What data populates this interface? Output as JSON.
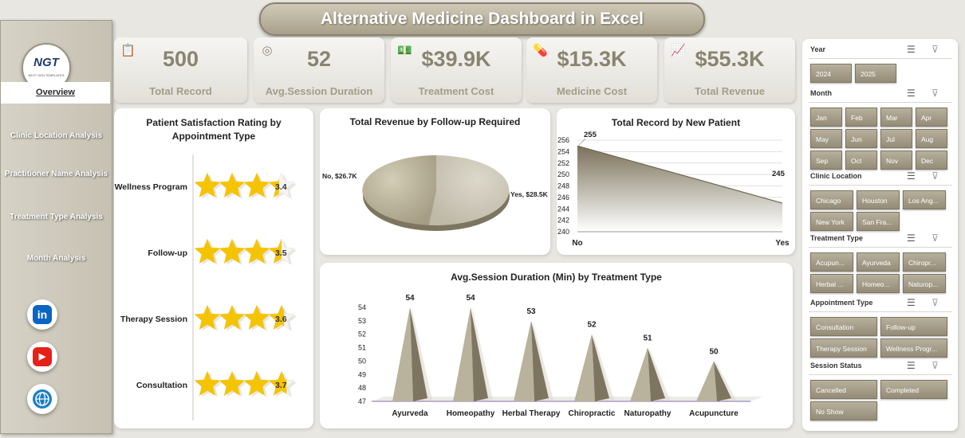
{
  "title": "Alternative Medicine Dashboard in Excel",
  "logo": {
    "text": "NGT",
    "subtext": "NEXT GEN TEMPLATES"
  },
  "nav": [
    {
      "label": "Overview",
      "active": true
    },
    {
      "label": "Clinic Location Analysis"
    },
    {
      "label": "Practitioner Name Analysis"
    },
    {
      "label": "Treatment Type Analysis"
    },
    {
      "label": "Month Analysis"
    }
  ],
  "social": [
    {
      "name": "linkedin-icon",
      "glyph": "in",
      "color": "#0a66c2"
    },
    {
      "name": "youtube-icon",
      "glyph": "▶",
      "color": "#e62117"
    },
    {
      "name": "globe-icon",
      "glyph": "🌐",
      "color": "#1b7fc4"
    }
  ],
  "kpis": [
    {
      "value": "500",
      "label": "Total Record",
      "icon": "clipboard-icon"
    },
    {
      "value": "52",
      "label": "Avg.Session Duration",
      "icon": "timer-icon"
    },
    {
      "value": "$39.9K",
      "label": "Treatment Cost",
      "icon": "money-icon"
    },
    {
      "value": "$15.3K",
      "label": "Medicine Cost",
      "icon": "medicine-icon"
    },
    {
      "value": "$55.3K",
      "label": "Total Revenue",
      "icon": "revenue-icon"
    }
  ],
  "charts": {
    "satisfaction": {
      "title": "Patient Satisfaction Rating by Appointment Type"
    },
    "followup": {
      "title": "Total Revenue by Follow-up Required"
    },
    "newpatient": {
      "title": "Total Record by New Patient"
    },
    "session": {
      "title": "Avg.Session Duration (Min) by Treatment Type"
    }
  },
  "chart_data": [
    {
      "type": "bar",
      "title": "Patient Satisfaction Rating by Appointment Type",
      "categories": [
        "Wellness Program",
        "Follow-up",
        "Therapy Session",
        "Consultation"
      ],
      "values": [
        3.4,
        3.5,
        3.6,
        3.7
      ],
      "labels": [
        "3.4",
        "3.5",
        "3.6",
        "3.7"
      ],
      "max": 4
    },
    {
      "type": "pie",
      "title": "Total Revenue by Follow-up Required",
      "categories": [
        "No",
        "Yes"
      ],
      "values": [
        26.7,
        28.5
      ],
      "labels": [
        "No, $26.7K",
        "Yes, $28.5K"
      ]
    },
    {
      "type": "area",
      "title": "Total Record by New Patient",
      "categories": [
        "No",
        "Yes"
      ],
      "values": [
        255,
        245
      ],
      "ylim": [
        240,
        256
      ],
      "yticks": [
        "240",
        "242",
        "244",
        "246",
        "248",
        "250",
        "252",
        "254",
        "256"
      ]
    },
    {
      "type": "bar",
      "title": "Avg.Session Duration (Min) by Treatment Type",
      "categories": [
        "Ayurveda",
        "Homeopathy",
        "Herbal Therapy",
        "Chiropractic",
        "Naturopathy",
        "Acupuncture"
      ],
      "values": [
        54,
        54,
        53,
        52,
        51,
        50
      ],
      "ylim": [
        47,
        54
      ],
      "yticks": [
        "47",
        "48",
        "49",
        "50",
        "51",
        "52",
        "53",
        "54"
      ]
    }
  ],
  "slicers": [
    {
      "title": "Year",
      "items": [
        "2024",
        "2025"
      ]
    },
    {
      "title": "Month",
      "items": [
        "Jan",
        "Feb",
        "Mar",
        "Apr",
        "May",
        "Jun",
        "Jul",
        "Aug",
        "Sep",
        "Oct",
        "Nov",
        "Dec"
      ]
    },
    {
      "title": "Clinic Location",
      "items": [
        "Chicago",
        "Houston",
        "Los Ang...",
        "New York",
        "San Fra..."
      ]
    },
    {
      "title": "Treatment Type",
      "items": [
        "Acupun...",
        "Ayurveda",
        "Chiropr...",
        "Herbal ...",
        "Homeo...",
        "Naturop..."
      ]
    },
    {
      "title": "Appointment Type",
      "items": [
        "Consultation",
        "Follow-up",
        "Therapy Session",
        "Wellness Progr..."
      ]
    },
    {
      "title": "Session Status",
      "items": [
        "Cancelled",
        "Completed",
        "No Show"
      ]
    }
  ],
  "colors": {
    "accent": "#948c77",
    "star": "#f5c400",
    "pyramid": "#8c8470"
  }
}
